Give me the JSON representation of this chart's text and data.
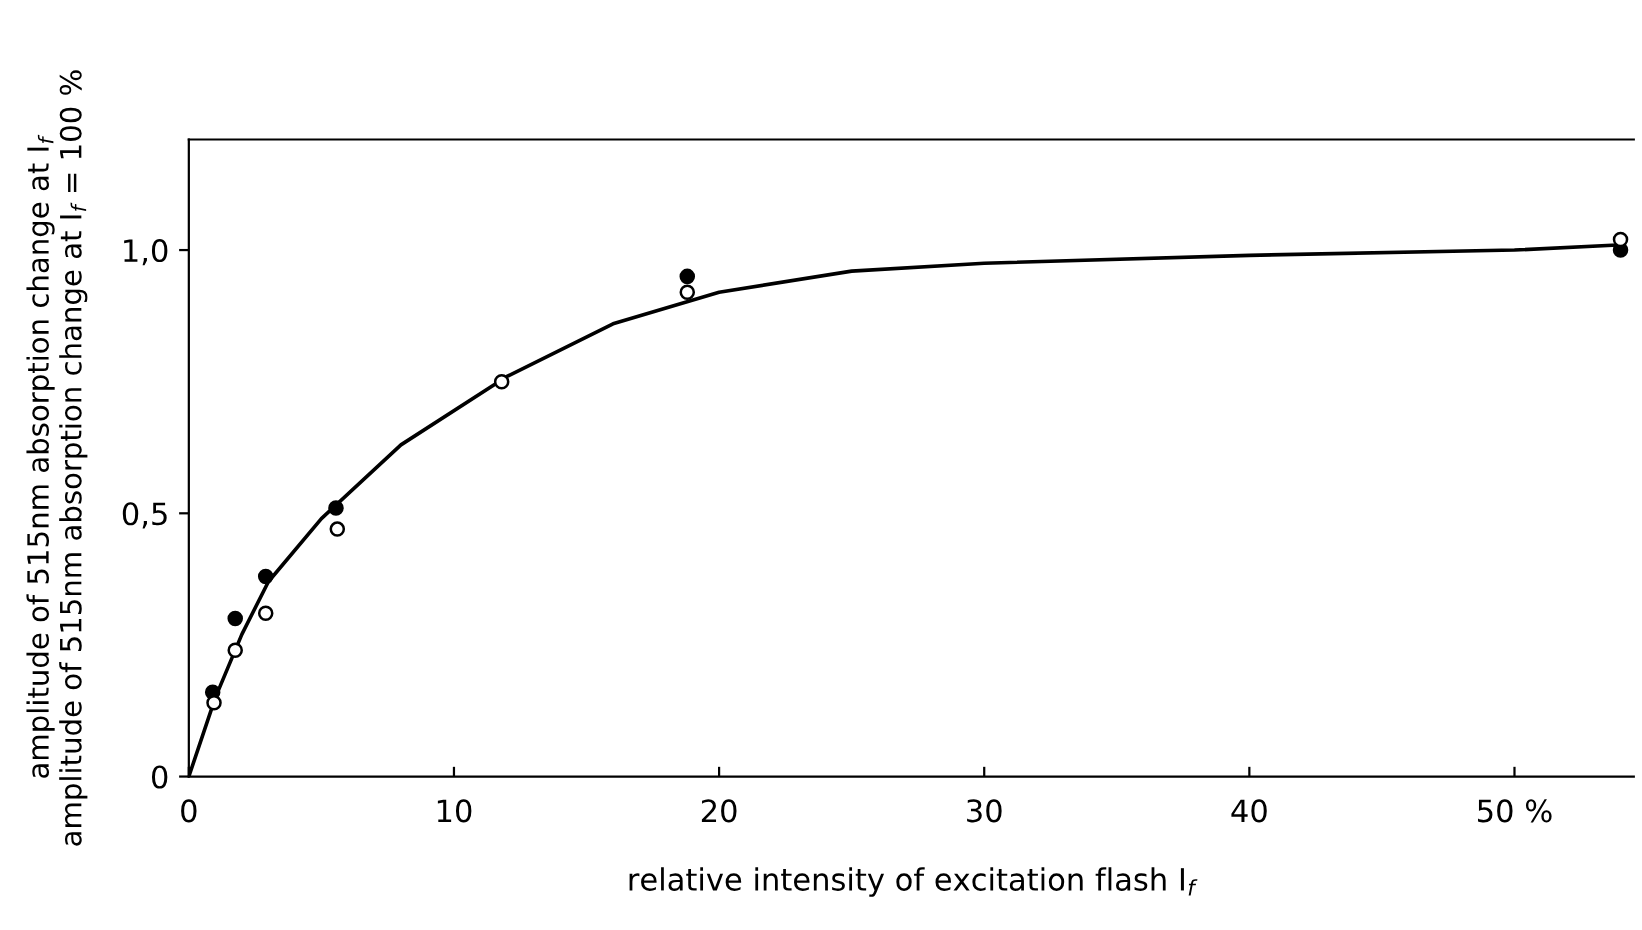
{
  "chart_data": {
    "type": "scatter",
    "xlabel": "relative intensity of excitation flash I$_{f}$",
    "ylabel": "amplitude of 515nm absorption change at I$_{f}$\namplitude of 515nm absorption change at I$_{f}$ = 100 %",
    "xlim": [
      0,
      54.5
    ],
    "ylim": [
      0,
      1.21
    ],
    "xticks": [
      0,
      10,
      20,
      30,
      40,
      {
        "value": 50,
        "label": "50 %"
      }
    ],
    "yticks": [
      0,
      {
        "value": 0.5,
        "label": "0,5"
      },
      {
        "value": 1.0,
        "label": "1,0"
      }
    ],
    "grid": false,
    "marker": "circle",
    "series": [
      {
        "color": "#000000",
        "x": [
          0.9,
          1.75,
          2.9,
          5.55,
          18.8,
          54
        ],
        "values": [
          0.16,
          0.3,
          0.38,
          0.51,
          0.95,
          1.0
        ]
      },
      {
        "color": "#ffffff",
        "x": [
          0.95,
          1.75,
          2.9,
          5.6,
          11.8,
          18.8,
          54
        ],
        "values": [
          0.14,
          0.24,
          0.31,
          0.47,
          0.75,
          0.92,
          1.02
        ]
      },
      {
        "type": "line",
        "color": "#000000",
        "line_style": "solid",
        "marker": "none",
        "x": [
          0,
          1,
          2,
          3,
          5,
          8,
          12,
          16,
          20,
          25,
          30,
          40,
          50,
          54
        ],
        "values": [
          0,
          0.15,
          0.27,
          0.37,
          0.49,
          0.63,
          0.76,
          0.86,
          0.92,
          0.96,
          0.975,
          0.99,
          1.0,
          1.01
        ]
      }
    ]
  }
}
